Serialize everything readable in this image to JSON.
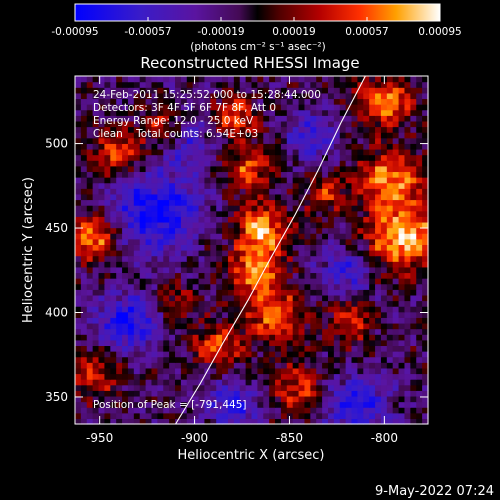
{
  "chart_data": {
    "type": "heatmap",
    "title": "Reconstructed RHESSI Image",
    "xlabel": "Heliocentric X (arcsec)",
    "ylabel": "Heliocentric Y (arcsec)",
    "xlim": [
      -963,
      -777
    ],
    "ylim": [
      334,
      540
    ],
    "x_ticks": [
      -950,
      -900,
      -850,
      -800
    ],
    "y_ticks": [
      350,
      400,
      450,
      500
    ],
    "grid": false,
    "colorbar": {
      "min": -0.00095,
      "max": 0.00095,
      "tick_values": [
        -0.00095,
        -0.00057,
        -0.00019,
        0.00019,
        0.00057,
        0.00095
      ],
      "tick_labels": [
        "-0.00095",
        "-0.00057",
        "-0.00019",
        "0.00019",
        "0.00057",
        "0.00095"
      ],
      "unit_label": "(photons cm⁻² s⁻¹ asec⁻²)"
    },
    "annotations": [
      "24-Feb-2011 15:25:52.000 to 15:28:44.000",
      "Detectors: 3F 4F 5F 6F 7F 8F, Att 0",
      "Energy Range: 12.0 - 25.0 keV",
      "Clean    Total counts: 6.54E+03"
    ],
    "peak_label": "Position of Peak = [-791,445]",
    "peak": [
      -791,
      445
    ],
    "limb_curve": {
      "x": [
        -910,
        -897,
        -885,
        -872,
        -860,
        -847,
        -835,
        -823,
        -810
      ],
      "y": [
        334,
        358,
        382,
        407,
        432,
        458,
        484,
        512,
        540
      ]
    },
    "blobs": [
      {
        "x": -790,
        "y": 445,
        "amp": 1.0,
        "r": 14
      },
      {
        "x": -797,
        "y": 480,
        "amp": 0.8,
        "r": 12
      },
      {
        "x": -800,
        "y": 525,
        "amp": 0.85,
        "r": 10
      },
      {
        "x": -865,
        "y": 450,
        "amp": 0.9,
        "r": 10
      },
      {
        "x": -868,
        "y": 425,
        "amp": 0.8,
        "r": 10
      },
      {
        "x": -872,
        "y": 485,
        "amp": 0.7,
        "r": 9
      },
      {
        "x": -880,
        "y": 515,
        "amp": 0.7,
        "r": 9
      },
      {
        "x": -858,
        "y": 398,
        "amp": 0.75,
        "r": 11
      },
      {
        "x": -888,
        "y": 380,
        "amp": 0.65,
        "r": 9
      },
      {
        "x": -915,
        "y": 510,
        "amp": 0.75,
        "r": 9
      },
      {
        "x": -940,
        "y": 495,
        "amp": 0.7,
        "r": 9
      },
      {
        "x": -953,
        "y": 445,
        "amp": 0.85,
        "r": 9
      },
      {
        "x": -952,
        "y": 365,
        "amp": 0.55,
        "r": 10
      },
      {
        "x": -845,
        "y": 355,
        "amp": 0.6,
        "r": 10
      },
      {
        "x": -818,
        "y": 395,
        "amp": 0.55,
        "r": 9
      },
      {
        "x": -910,
        "y": 405,
        "amp": 0.5,
        "r": 8
      },
      {
        "x": -830,
        "y": 470,
        "amp": 0.5,
        "r": 8
      },
      {
        "x": -920,
        "y": 460,
        "amp": -0.85,
        "r": 16
      },
      {
        "x": -905,
        "y": 505,
        "amp": -0.6,
        "r": 12
      },
      {
        "x": -935,
        "y": 395,
        "amp": -0.75,
        "r": 12
      },
      {
        "x": -815,
        "y": 345,
        "amp": -0.7,
        "r": 12
      },
      {
        "x": -820,
        "y": 425,
        "amp": -0.55,
        "r": 10
      },
      {
        "x": -838,
        "y": 505,
        "amp": -0.5,
        "r": 10
      },
      {
        "x": -880,
        "y": 345,
        "amp": -0.6,
        "r": 10
      }
    ]
  },
  "footer": {
    "date": "9-May-2022 07:24"
  }
}
